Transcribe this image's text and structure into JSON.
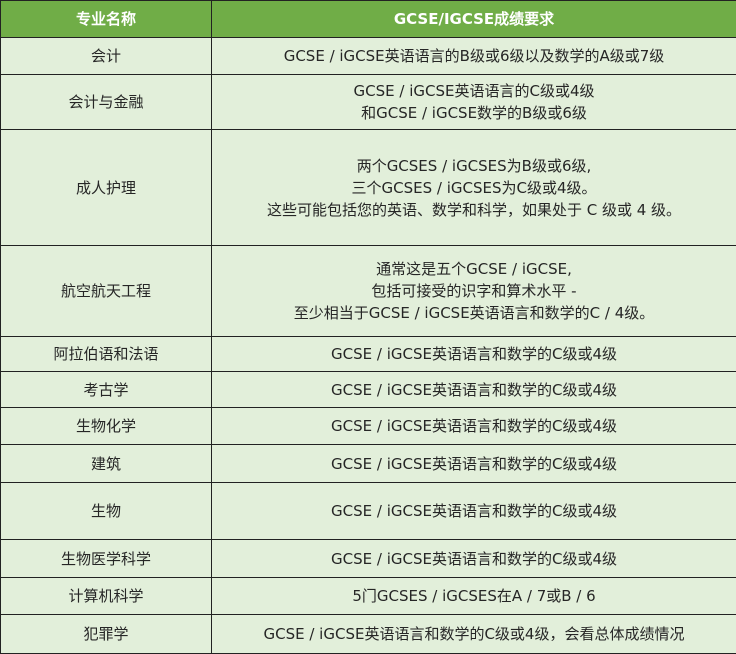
{
  "colors": {
    "header_bg": "#70ad47",
    "row_bg": "#e2efda",
    "border": "#222222"
  },
  "header": {
    "major": "专业名称",
    "requirement": "GCSE/IGCSE成绩要求"
  },
  "rows": [
    {
      "major": "会计",
      "requirement": "GCSE / iGCSE英语语言的B级或6级以及数学的A级或7级"
    },
    {
      "major": "会计与金融",
      "requirement": "GCSE / iGCSE英语语言的C级或4级\n和GCSE / iGCSE数学的B级或6级"
    },
    {
      "major": "成人护理",
      "requirement": "两个GCSES / iGCSES为B级或6级,\n三个GCSES / iGCSES为C级或4级。\n这些可能包括您的英语、数学和科学，如果处于 C 级或 4 级。"
    },
    {
      "major": "航空航天工程",
      "requirement": "通常这是五个GCSE / iGCSE,\n包括可接受的识字和算术水平 -\n至少相当于GCSE / iGCSE英语语言和数学的C / 4级。"
    },
    {
      "major": "阿拉伯语和法语",
      "requirement": "GCSE / iGCSE英语语言和数学的C级或4级"
    },
    {
      "major": "考古学",
      "requirement": "GCSE / iGCSE英语语言和数学的C级或4级"
    },
    {
      "major": "生物化学",
      "requirement": "GCSE / iGCSE英语语言和数学的C级或4级"
    },
    {
      "major": "建筑",
      "requirement": "GCSE / iGCSE英语语言和数学的C级或4级"
    },
    {
      "major": "生物",
      "requirement": "GCSE / iGCSE英语语言和数学的C级或4级"
    },
    {
      "major": "生物医学科学",
      "requirement": "GCSE / iGCSE英语语言和数学的C级或4级"
    },
    {
      "major": "计算机科学",
      "requirement": "5门GCSES / iGCSES在A / 7或B / 6"
    },
    {
      "major": "犯罪学",
      "requirement": "GCSE / iGCSE英语语言和数学的C级或4级，会看总体成绩情况"
    }
  ]
}
